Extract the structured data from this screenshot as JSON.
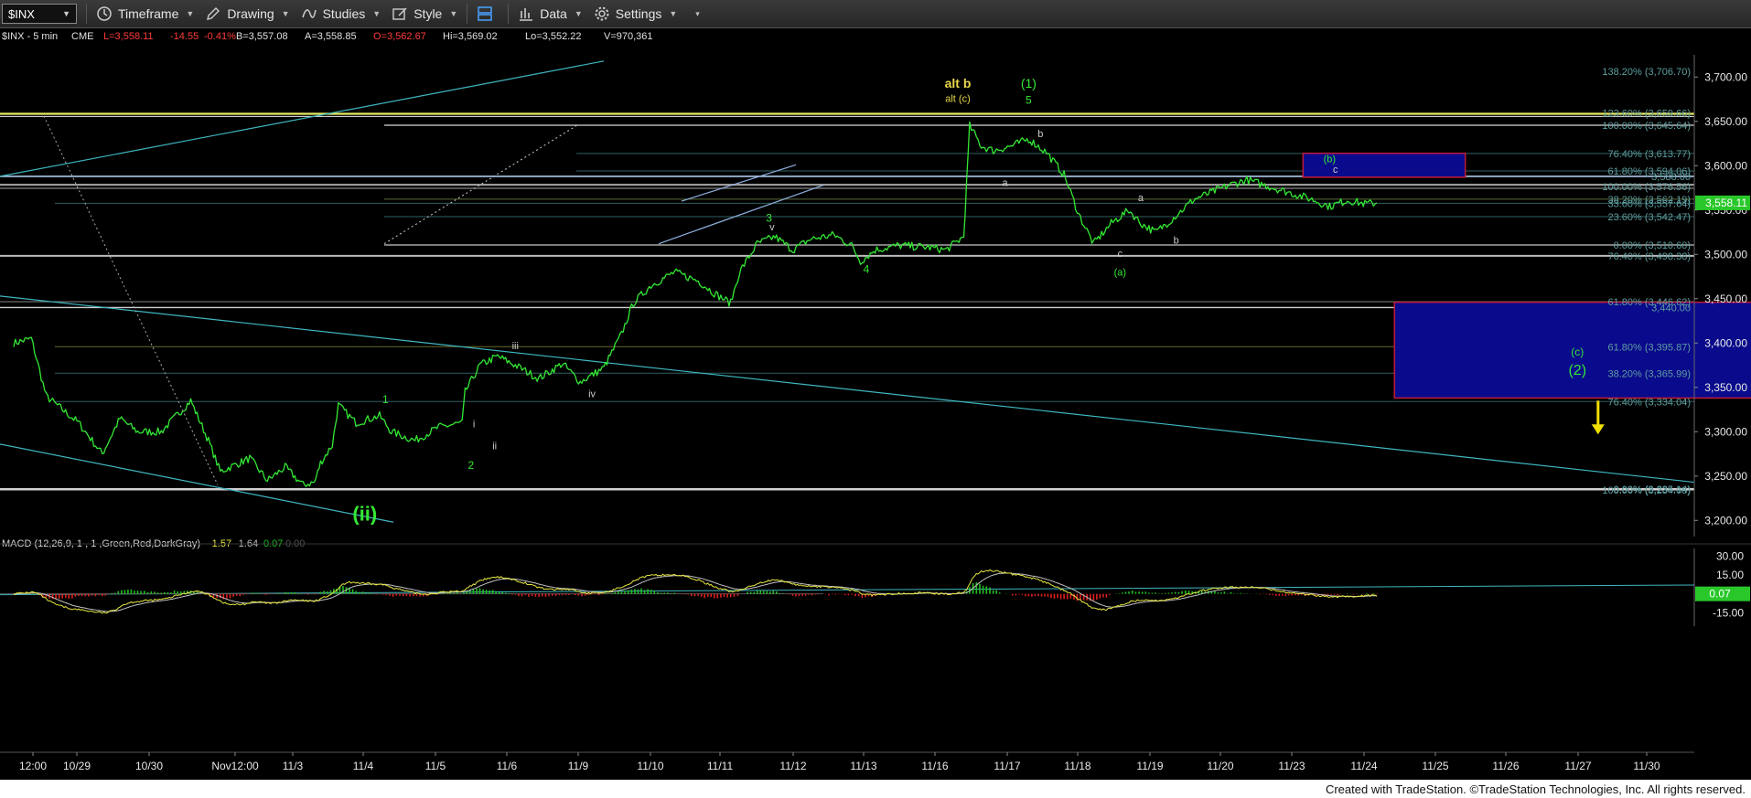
{
  "toolbar": {
    "symbol": "$INX",
    "timeframe_label": "Timeframe",
    "drawing_label": "Drawing",
    "studies_label": "Studies",
    "style_label": "Style",
    "data_label": "Data",
    "settings_label": "Settings",
    "icons": [
      "clock-icon",
      "pencil-icon",
      "studies-icon",
      "style-icon",
      "layout-icon",
      "data-icon",
      "gear-icon"
    ]
  },
  "header": {
    "symbol_tf": "$INX - 5 min",
    "exchange": "CME",
    "last": "L=3,558.11",
    "change": "-14.55",
    "pct": "-0.41%",
    "bid": "B=3,557.08",
    "ask": "A=3,558.85",
    "open": "O=3,562.67",
    "high": "Hi=3,569.02",
    "low": "Lo=3,552.22",
    "volume": "V=970,361"
  },
  "colors": {
    "background": "#000000",
    "price": "#34e834",
    "negative": "#ff3b3b",
    "fib_text": "#5f9ea0",
    "fib_line": "#2f5f62",
    "trend_line": "#3fb6c0",
    "level_yellow": "#e8e862",
    "box_blue": "#0a0a8c",
    "box_border": "#c01a3a",
    "arrow": "#f0e000",
    "macd_line": "#e8e840",
    "signal_line": "#c0c0c0",
    "hist_pos": "#22c022",
    "hist_neg": "#e02020",
    "last_tag": "#2ac72a"
  },
  "chart_data": {
    "type": "line",
    "title": "$INX - 5 min",
    "price_axis": {
      "ticks": [
        "3,700.00",
        "3,650.00",
        "3,600.00",
        "3,550.00",
        "3,500.00",
        "3,450.00",
        "3,400.00",
        "3,350.00",
        "3,300.00",
        "3,250.00",
        "3,200.00"
      ],
      "ylim": [
        3190,
        3725
      ],
      "last_value_tag": "3,558.11"
    },
    "x_axis": {
      "ticks": [
        "12:00",
        "10/29",
        "10/30",
        "Nov12:00",
        "11/3",
        "11/4",
        "11/5",
        "11/6",
        "11/9",
        "11/10",
        "11/11",
        "11/12",
        "11/13",
        "11/16",
        "11/17",
        "11/18",
        "11/19",
        "11/20",
        "11/23",
        "11/24",
        "11/25",
        "11/26",
        "11/27",
        "11/30"
      ]
    },
    "price_series": {
      "name": "$INX",
      "anchors": [
        [
          0,
          3400
        ],
        [
          0.3,
          3405
        ],
        [
          0.55,
          3340
        ],
        [
          1.1,
          3310
        ],
        [
          1.5,
          3275
        ],
        [
          1.8,
          3315
        ],
        [
          2.1,
          3300
        ],
        [
          2.5,
          3300
        ],
        [
          3.0,
          3335
        ],
        [
          3.3,
          3290
        ],
        [
          3.5,
          3255
        ],
        [
          4.0,
          3270
        ],
        [
          4.3,
          3245
        ],
        [
          4.6,
          3260
        ],
        [
          4.9,
          3240
        ],
        [
          5.1,
          3243
        ],
        [
          5.2,
          3265
        ],
        [
          5.4,
          3285
        ],
        [
          5.5,
          3330
        ],
        [
          5.8,
          3310
        ],
        [
          6.2,
          3318
        ],
        [
          6.4,
          3300
        ],
        [
          6.8,
          3290
        ],
        [
          7.2,
          3305
        ],
        [
          7.6,
          3310
        ],
        [
          7.65,
          3345
        ],
        [
          7.9,
          3375
        ],
        [
          8.2,
          3385
        ],
        [
          8.5,
          3375
        ],
        [
          8.9,
          3360
        ],
        [
          9.3,
          3377
        ],
        [
          9.6,
          3356
        ],
        [
          10.0,
          3372
        ],
        [
          10.3,
          3410
        ],
        [
          10.5,
          3445
        ],
        [
          10.8,
          3465
        ],
        [
          11.2,
          3480
        ],
        [
          11.6,
          3470
        ],
        [
          11.9,
          3455
        ],
        [
          12.15,
          3445
        ],
        [
          12.3,
          3480
        ],
        [
          12.6,
          3512
        ],
        [
          12.9,
          3520
        ],
        [
          13.2,
          3505
        ],
        [
          13.5,
          3517
        ],
        [
          13.9,
          3522
        ],
        [
          14.2,
          3510
        ],
        [
          14.35,
          3492
        ],
        [
          14.6,
          3505
        ],
        [
          15.0,
          3510
        ],
        [
          15.5,
          3508
        ],
        [
          15.8,
          3505
        ],
        [
          16.1,
          3520
        ],
        [
          16.2,
          3645
        ],
        [
          16.4,
          3622
        ],
        [
          16.6,
          3617
        ],
        [
          16.9,
          3622
        ],
        [
          17.2,
          3630
        ],
        [
          17.5,
          3615
        ],
        [
          17.8,
          3590
        ],
        [
          18.05,
          3545
        ],
        [
          18.3,
          3512
        ],
        [
          18.6,
          3535
        ],
        [
          18.9,
          3550
        ],
        [
          19.1,
          3535
        ],
        [
          19.35,
          3525
        ],
        [
          19.6,
          3538
        ],
        [
          19.8,
          3550
        ],
        [
          20.0,
          3562
        ],
        [
          20.3,
          3570
        ],
        [
          20.6,
          3578
        ],
        [
          20.9,
          3584
        ],
        [
          21.2,
          3578
        ],
        [
          21.5,
          3572
        ],
        [
          21.8,
          3566
        ],
        [
          22.0,
          3562
        ],
        [
          22.3,
          3554
        ],
        [
          22.6,
          3561
        ],
        [
          22.9,
          3557
        ],
        [
          23.1,
          3558
        ]
      ]
    },
    "fib_levels": [
      {
        "label": "138.20% (3,706.70)",
        "price": 3706.7
      },
      {
        "label": "123.60% (3,659.66)",
        "price": 3659.66
      },
      {
        "label": "100.00% (3,645.64)",
        "price": 3645.64
      },
      {
        "label": "76.40% (3,613.77)",
        "price": 3613.77
      },
      {
        "label": "61.80% (3,594.06)",
        "price": 3594.06
      },
      {
        "label": "3,588.00",
        "price": 3588.0
      },
      {
        "label": "100.00% (3,576.56)",
        "price": 3576.56
      },
      {
        "label": "38.20% (3,562.19)",
        "price": 3562.19
      },
      {
        "label": "33.60% (3,557.64)",
        "price": 3557.64
      },
      {
        "label": "23.60% (3,542.47)",
        "price": 3542.47
      },
      {
        "label": "0.00% (3,510.60)",
        "price": 3510.6
      },
      {
        "label": "76.40% (3,498.38)",
        "price": 3498.38
      },
      {
        "label": "61.80% (3,446.62)",
        "price": 3446.62
      },
      {
        "label": "3,440.00",
        "price": 3440.0
      },
      {
        "label": "61.80% (3,395.87)",
        "price": 3395.87
      },
      {
        "label": "38.20% (3,365.99)",
        "price": 3365.99
      },
      {
        "label": "76.40% (3,334.04)",
        "price": 3334.04
      },
      {
        "label": "100.00% (3,234.08)",
        "price": 3234.08
      },
      {
        "label": "0.00% (3,235.14)",
        "price": 3235.14
      }
    ],
    "wave_labels": [
      {
        "text": "alt b",
        "x": 16.0,
        "price": 3688,
        "color": "#e8d84a",
        "size": 14,
        "bold": true
      },
      {
        "text": "alt (c)",
        "x": 16.0,
        "price": 3672,
        "color": "#e8d84a",
        "size": 11
      },
      {
        "text": "(1)",
        "x": 17.2,
        "price": 3688,
        "color": "#34e834",
        "size": 14
      },
      {
        "text": "5",
        "x": 17.2,
        "price": 3670,
        "color": "#34e834",
        "size": 12
      },
      {
        "text": "b",
        "x": 17.4,
        "price": 3632,
        "color": "#cccccc",
        "size": 11
      },
      {
        "text": "a",
        "x": 16.8,
        "price": 3577,
        "color": "#cccccc",
        "size": 11
      },
      {
        "text": "(b)",
        "x": 22.3,
        "price": 3604,
        "color": "#34e834",
        "size": 11
      },
      {
        "text": "c",
        "x": 22.4,
        "price": 3592,
        "color": "#cccccc",
        "size": 11
      },
      {
        "text": "a",
        "x": 19.1,
        "price": 3560,
        "color": "#cccccc",
        "size": 11
      },
      {
        "text": "b",
        "x": 19.7,
        "price": 3512,
        "color": "#cccccc",
        "size": 11
      },
      {
        "text": "c",
        "x": 18.75,
        "price": 3497,
        "color": "#cccccc",
        "size": 11
      },
      {
        "text": "(a)",
        "x": 18.75,
        "price": 3476,
        "color": "#34e834",
        "size": 11
      },
      {
        "text": "3",
        "x": 12.8,
        "price": 3537,
        "color": "#34e834",
        "size": 12
      },
      {
        "text": "v",
        "x": 12.85,
        "price": 3527,
        "color": "#cccccc",
        "size": 11
      },
      {
        "text": "4",
        "x": 14.45,
        "price": 3479,
        "color": "#34e834",
        "size": 12
      },
      {
        "text": "iii",
        "x": 8.5,
        "price": 3393,
        "color": "#cccccc",
        "size": 11
      },
      {
        "text": "iv",
        "x": 9.8,
        "price": 3339,
        "color": "#cccccc",
        "size": 11
      },
      {
        "text": "1",
        "x": 6.3,
        "price": 3332,
        "color": "#34e834",
        "size": 12
      },
      {
        "text": "i",
        "x": 7.8,
        "price": 3305,
        "color": "#cccccc",
        "size": 11
      },
      {
        "text": "ii",
        "x": 8.15,
        "price": 3280,
        "color": "#cccccc",
        "size": 11
      },
      {
        "text": "2",
        "x": 7.75,
        "price": 3258,
        "color": "#34e834",
        "size": 12
      },
      {
        "text": "(ii)",
        "x": 5.95,
        "price": 3200,
        "color": "#34e834",
        "size": 22,
        "bold": true
      },
      {
        "text": "(c)",
        "x": 26.5,
        "price": 3386,
        "color": "#34e834",
        "size": 12
      },
      {
        "text": "(2)",
        "x": 26.5,
        "price": 3364,
        "color": "#34e834",
        "size": 16
      }
    ],
    "zones": [
      {
        "x0": 21.85,
        "x1": 24.6,
        "top": 3614,
        "bottom": 3587
      },
      {
        "x0": 23.4,
        "x1": 31.0,
        "top": 3446,
        "bottom": 3338
      }
    ],
    "macd": {
      "label": "MACD (12,26,9, 1 , 1 ,Green,Red,DarkGray)",
      "values": [
        "-1.57",
        "-1.64",
        "0.07",
        "0.00"
      ],
      "ticks": [
        "30.00",
        "15.00",
        "-15.00"
      ],
      "ylim": [
        -22,
        36
      ],
      "last_value_tag": "0.07"
    }
  },
  "footer": {
    "credit": "Created with TradeStation. ©TradeStation Technologies, Inc. All rights reserved."
  }
}
